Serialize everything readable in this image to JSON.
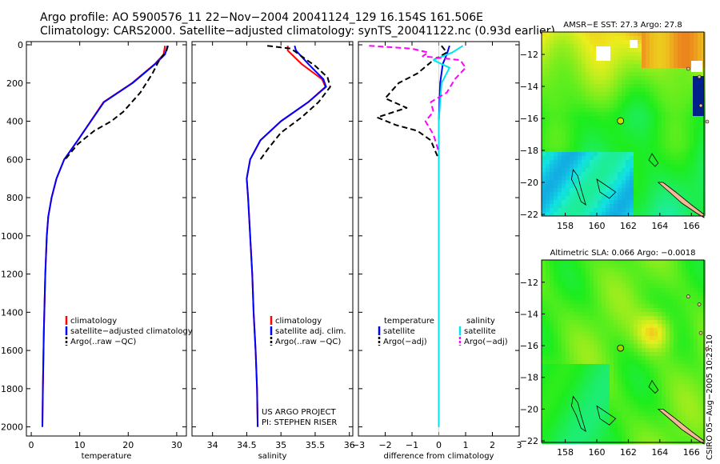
{
  "header": {
    "line1": "Argo profile: AO 5900576_11 22−Nov−2004 20041124_129 16.154S 161.506E",
    "line2": "Climatology: CARS2000. Satellite−adjusted climatology: synTS_20041122.nc (0.93d earlier)"
  },
  "stamp": "CSIRO 05−Aug−2005 10:23:10",
  "colors": {
    "red": "#ff0000",
    "blue": "#0000ff",
    "black": "#000000",
    "cyan": "#00e5ee",
    "magenta": "#ff00ff",
    "land": "#f4b896"
  },
  "chart_data": [
    {
      "type": "line",
      "name": "temperature",
      "xlabel": "temperature",
      "ylabel": "",
      "xlim": [
        -1,
        32
      ],
      "ylim": [
        2050,
        0
      ],
      "yreversed": true,
      "xticks": [
        0,
        10,
        20,
        30
      ],
      "xtick_labels": [
        "0",
        "10",
        "20",
        "30"
      ],
      "yticks": [
        0,
        200,
        400,
        600,
        800,
        1000,
        1200,
        1400,
        1600,
        1800,
        2000
      ],
      "ytick_labels": [
        "0",
        "200",
        "400",
        "600",
        "800",
        "1000",
        "1200",
        "1400",
        "1600",
        "1800",
        "2000"
      ],
      "legend": [
        "climatology",
        "satellite−adjusted climatology",
        "Argo(..raw −QC)"
      ],
      "legend_position": "lower-center",
      "series": [
        {
          "name": "climatology",
          "color": "#ff0000",
          "dash": "",
          "x": [
            27.6,
            27.3,
            25.5,
            20.8,
            14.9,
            9.6,
            6.8,
            5.2,
            4.2,
            3.5,
            3.2,
            2.9,
            2.6,
            2.4,
            2.3
          ],
          "y": [
            5,
            50,
            100,
            200,
            300,
            500,
            600,
            700,
            800,
            900,
            1000,
            1200,
            1500,
            1800,
            2000
          ]
        },
        {
          "name": "satellite−adjusted climatology",
          "color": "#0000ff",
          "dash": "",
          "x": [
            28.1,
            27.6,
            25.6,
            20.9,
            15.0,
            9.6,
            6.8,
            5.2,
            4.2,
            3.5,
            3.2,
            2.9,
            2.6,
            2.4,
            2.3
          ],
          "y": [
            5,
            50,
            100,
            200,
            300,
            500,
            600,
            700,
            800,
            900,
            1000,
            1200,
            1500,
            1800,
            2000
          ]
        },
        {
          "name": "Argo(..raw −QC)",
          "color": "#000000",
          "dash": "7,4",
          "x": [
            28.2,
            27.9,
            26.2,
            25.0,
            22.5,
            19.0,
            16.5,
            13.0,
            9.6,
            7.0
          ],
          "y": [
            5,
            30,
            90,
            150,
            250,
            350,
            400,
            450,
            520,
            600
          ]
        }
      ]
    },
    {
      "type": "line",
      "name": "salinity",
      "xlabel": "salinity",
      "ylabel": "",
      "xlim": [
        33.7,
        36.05
      ],
      "ylim": [
        2050,
        0
      ],
      "yreversed": true,
      "xticks": [
        34,
        34.5,
        35,
        35.5,
        36
      ],
      "xtick_labels": [
        "34",
        "34.5",
        "35",
        "35.5",
        "36"
      ],
      "legend": [
        "climatology",
        "satellite adj. clim.",
        "Argo(..raw −QC)"
      ],
      "legend_position": "lower-right",
      "annotation": [
        "US ARGO PROJECT",
        "PI: STEPHEN RISER"
      ],
      "series": [
        {
          "name": "climatology",
          "color": "#ff0000",
          "dash": "",
          "x": [
            35.1,
            35.1,
            35.3,
            35.6,
            35.65,
            35.4,
            35.0,
            34.7,
            34.55,
            34.5,
            34.52,
            34.55,
            34.58,
            34.6,
            34.63,
            34.65,
            34.66
          ],
          "y": [
            5,
            30,
            100,
            180,
            220,
            300,
            400,
            500,
            600,
            700,
            800,
            1000,
            1200,
            1400,
            1600,
            1800,
            2000
          ]
        },
        {
          "name": "satellite adj. clim.",
          "color": "#0000ff",
          "dash": "",
          "x": [
            35.2,
            35.22,
            35.4,
            35.62,
            35.66,
            35.4,
            35.0,
            34.7,
            34.55,
            34.5,
            34.52,
            34.55,
            34.58,
            34.6,
            34.63,
            34.65,
            34.66
          ],
          "y": [
            5,
            30,
            100,
            180,
            220,
            300,
            400,
            500,
            600,
            700,
            800,
            1000,
            1200,
            1400,
            1600,
            1800,
            2000
          ]
        },
        {
          "name": "Argo(..raw −QC)",
          "color": "#000000",
          "dash": "7,4",
          "x": [
            34.8,
            35.15,
            35.3,
            35.5,
            35.68,
            35.72,
            35.55,
            35.3,
            35.0,
            34.82,
            34.7
          ],
          "y": [
            5,
            20,
            60,
            110,
            170,
            220,
            300,
            380,
            460,
            540,
            600
          ]
        }
      ]
    },
    {
      "type": "line",
      "name": "difference",
      "xlabel": "difference from climatology",
      "ylabel": "",
      "xlim": [
        -3,
        3
      ],
      "ylim": [
        2050,
        0
      ],
      "yreversed": true,
      "xticks": [
        -3,
        -2,
        -1,
        0,
        1,
        2,
        3
      ],
      "xtick_labels": [
        "−3",
        "−2",
        "−1",
        "0",
        "1",
        "2",
        "3"
      ],
      "legend": [
        "temperature",
        "satellite",
        "Argo(−adj)",
        "salinity",
        "satellite",
        "Argo(−adj)"
      ],
      "legend_position": "lower",
      "series": [
        {
          "name": "temperature satellite",
          "color": "#0000ff",
          "dash": "",
          "x": [
            0.4,
            0.3,
            0.15,
            0.05,
            0,
            0,
            0
          ],
          "y": [
            5,
            50,
            100,
            200,
            400,
            700,
            2000
          ]
        },
        {
          "name": "temperature Argo(−adj)",
          "color": "#000000",
          "dash": "7,4",
          "x": [
            0.1,
            0.3,
            -0.2,
            -0.8,
            -1.5,
            -2.0,
            -1.2,
            -2.3,
            -1.6,
            -0.8,
            -0.3,
            0
          ],
          "y": [
            5,
            40,
            80,
            150,
            200,
            280,
            330,
            380,
            420,
            450,
            500,
            600
          ]
        },
        {
          "name": "salinity satellite",
          "color": "#00e5ee",
          "dash": "",
          "x": [
            0.9,
            0.5,
            -0.2,
            0.4,
            0.1,
            0,
            0,
            0
          ],
          "y": [
            5,
            40,
            80,
            120,
            200,
            400,
            700,
            2000
          ]
        },
        {
          "name": "salinity Argo(−adj)",
          "color": "#ff00ff",
          "dash": "7,4",
          "x": [
            -2.6,
            -1.0,
            -0.4,
            -0.6,
            0.8,
            1.0,
            0.6,
            0.3,
            -0.3,
            -0.2,
            -0.5,
            -0.2,
            0
          ],
          "y": [
            5,
            20,
            40,
            60,
            80,
            120,
            180,
            250,
            300,
            350,
            400,
            470,
            560
          ]
        }
      ]
    },
    {
      "type": "heatmap",
      "name": "sst_map",
      "title": "AMSR−E SST: 27.3 Argo: 27.8",
      "xlim": [
        156.5,
        166.8
      ],
      "ylim": [
        -22.1,
        -10.6
      ],
      "xticks": [
        158,
        160,
        162,
        164,
        166
      ],
      "yticks": [
        -12,
        -14,
        -16,
        -18,
        -20,
        -22
      ],
      "xtick_labels": [
        "158",
        "160",
        "162",
        "164",
        "166"
      ],
      "ytick_labels": [
        "−12",
        "−14",
        "−16",
        "−18",
        "−20",
        "−22"
      ],
      "argo_position": {
        "lon": 161.506,
        "lat": -16.154
      }
    },
    {
      "type": "heatmap",
      "name": "sla_map",
      "title": "Altimetric SLA: 0.066 Argo: −0.0018",
      "xlim": [
        156.5,
        166.8
      ],
      "ylim": [
        -22.1,
        -10.6
      ],
      "xticks": [
        158,
        160,
        162,
        164,
        166
      ],
      "yticks": [
        -12,
        -14,
        -16,
        -18,
        -20,
        -22
      ],
      "xtick_labels": [
        "158",
        "160",
        "162",
        "164",
        "166"
      ],
      "ytick_labels": [
        "−12",
        "−14",
        "−16",
        "−18",
        "−20",
        "−22"
      ],
      "argo_position": {
        "lon": 161.506,
        "lat": -16.154
      }
    }
  ]
}
